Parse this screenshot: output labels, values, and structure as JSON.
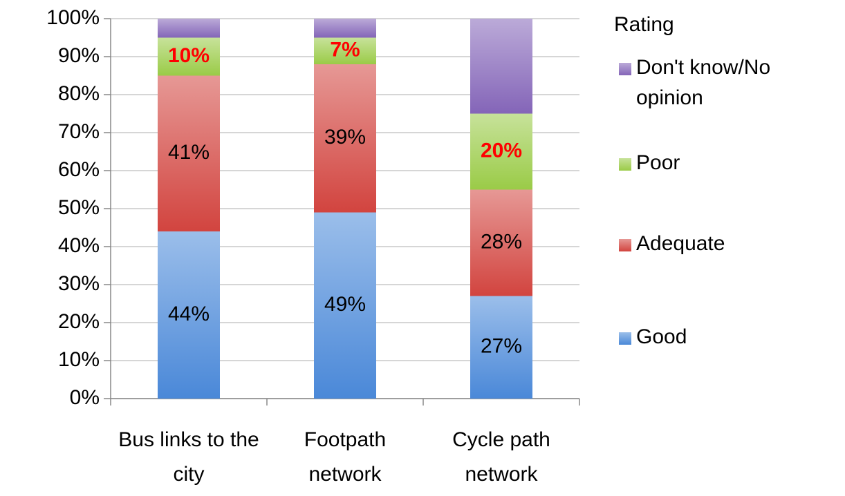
{
  "chart_data": {
    "type": "stacked_bar",
    "categories": [
      "Bus links to the city",
      "Footpath network",
      "Cycle path network"
    ],
    "series": [
      {
        "name": "Good",
        "color": "#4a88d8",
        "values": [
          44,
          49,
          27
        ],
        "value_labels": [
          "44%",
          "49%",
          "27%"
        ],
        "label_color": "#000000"
      },
      {
        "name": "Adequate",
        "color": "#d2443f",
        "values": [
          41,
          39,
          28
        ],
        "value_labels": [
          "41%",
          "39%",
          "28%"
        ],
        "label_color": "#000000"
      },
      {
        "name": "Poor",
        "color": "#9acb47",
        "values": [
          10,
          7,
          20
        ],
        "value_labels": [
          "10%",
          "7%",
          "20%"
        ],
        "label_color": "#ff0000",
        "label_bold": true
      },
      {
        "name": "Don't know/No opinion",
        "color": "#8465b8",
        "values": [
          5,
          5,
          25
        ]
      }
    ],
    "legend_title": "Rating",
    "ylim": [
      0,
      100
    ],
    "yticks": [
      {
        "value": 0,
        "label": "0%"
      },
      {
        "value": 10,
        "label": "10%"
      },
      {
        "value": 20,
        "label": "20%"
      },
      {
        "value": 30,
        "label": "30%"
      },
      {
        "value": 40,
        "label": "40%"
      },
      {
        "value": 50,
        "label": "50%"
      },
      {
        "value": 60,
        "label": "60%"
      },
      {
        "value": 70,
        "label": "70%"
      },
      {
        "value": 80,
        "label": "80%"
      },
      {
        "value": 90,
        "label": "90%"
      },
      {
        "value": 100,
        "label": "100%"
      }
    ],
    "grid": true,
    "legend": "right"
  }
}
